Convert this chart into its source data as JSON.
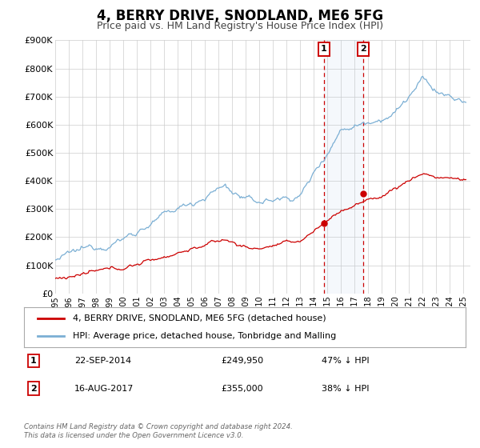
{
  "title": "4, BERRY DRIVE, SNODLAND, ME6 5FG",
  "subtitle": "Price paid vs. HM Land Registry's House Price Index (HPI)",
  "ylim": [
    0,
    900000
  ],
  "yticks": [
    0,
    100000,
    200000,
    300000,
    400000,
    500000,
    600000,
    700000,
    800000,
    900000
  ],
  "ytick_labels": [
    "£0",
    "£100K",
    "£200K",
    "£300K",
    "£400K",
    "£500K",
    "£600K",
    "£700K",
    "£800K",
    "£900K"
  ],
  "xlim_start": 1995.0,
  "xlim_end": 2025.5,
  "xtick_years": [
    1995,
    1996,
    1997,
    1998,
    1999,
    2000,
    2001,
    2002,
    2003,
    2004,
    2005,
    2006,
    2007,
    2008,
    2009,
    2010,
    2011,
    2012,
    2013,
    2014,
    2015,
    2016,
    2017,
    2018,
    2019,
    2020,
    2021,
    2022,
    2023,
    2024,
    2025
  ],
  "hpi_color": "#7bafd4",
  "price_color": "#cc0000",
  "event1_x": 2014.73,
  "event2_x": 2017.62,
  "event1_price": 249950,
  "event2_price": 355000,
  "background_color": "#ffffff",
  "grid_color": "#cccccc",
  "legend_label_red": "4, BERRY DRIVE, SNODLAND, ME6 5FG (detached house)",
  "legend_label_blue": "HPI: Average price, detached house, Tonbridge and Malling",
  "annotation1_label": "1",
  "annotation1_date": "22-SEP-2014",
  "annotation1_price": "£249,950",
  "annotation1_pct": "47% ↓ HPI",
  "annotation2_label": "2",
  "annotation2_date": "16-AUG-2017",
  "annotation2_price": "£355,000",
  "annotation2_pct": "38% ↓ HPI",
  "footer": "Contains HM Land Registry data © Crown copyright and database right 2024.\nThis data is licensed under the Open Government Licence v3.0.",
  "title_fontsize": 12,
  "subtitle_fontsize": 9
}
